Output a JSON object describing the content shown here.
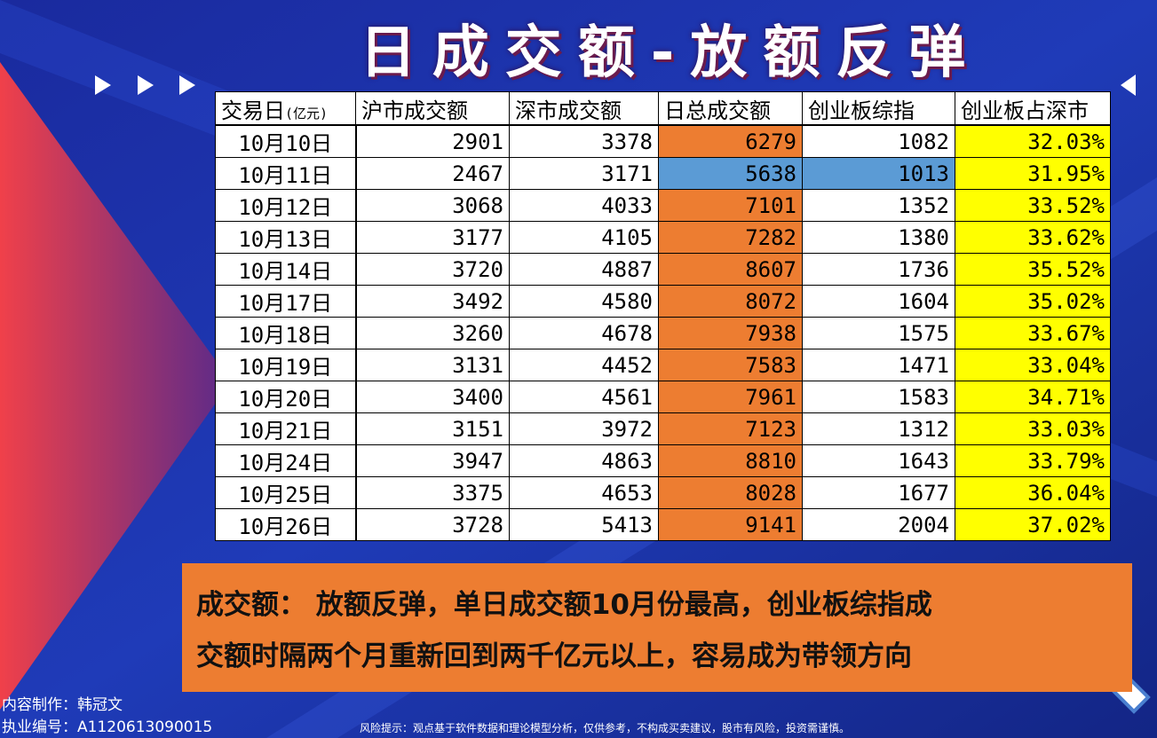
{
  "header": {
    "title": "日成交额-放额反弹"
  },
  "table": {
    "columns": [
      "交易日",
      "沪市成交额",
      "深市成交额",
      "日总成交额",
      "创业板综指",
      "创业板占深市"
    ],
    "unit": "(亿元)",
    "rows": [
      [
        "10月10日",
        "2901",
        "3378",
        "6279",
        "1082",
        "32.03%"
      ],
      [
        "10月11日",
        "2467",
        "3171",
        "5638",
        "1013",
        "31.95%"
      ],
      [
        "10月12日",
        "3068",
        "4033",
        "7101",
        "1352",
        "33.52%"
      ],
      [
        "10月13日",
        "3177",
        "4105",
        "7282",
        "1380",
        "33.62%"
      ],
      [
        "10月14日",
        "3720",
        "4887",
        "8607",
        "1736",
        "35.52%"
      ],
      [
        "10月17日",
        "3492",
        "4580",
        "8072",
        "1604",
        "35.02%"
      ],
      [
        "10月18日",
        "3260",
        "4678",
        "7938",
        "1575",
        "33.67%"
      ],
      [
        "10月19日",
        "3131",
        "4452",
        "7583",
        "1471",
        "33.04%"
      ],
      [
        "10月20日",
        "3400",
        "4561",
        "7961",
        "1583",
        "34.71%"
      ],
      [
        "10月21日",
        "3151",
        "3972",
        "7123",
        "1312",
        "33.03%"
      ],
      [
        "10月24日",
        "3947",
        "4863",
        "8810",
        "1643",
        "33.79%"
      ],
      [
        "10月25日",
        "3375",
        "4653",
        "8028",
        "1677",
        "36.04%"
      ],
      [
        "10月26日",
        "3728",
        "5413",
        "9141",
        "2004",
        "37.02%"
      ]
    ]
  },
  "summary": {
    "lines": [
      "成交额： 放额反弹，单日成交额10月份最高，创业板综指成",
      "交额时隔两个月重新回到两千亿元以上，容易成为带领方向"
    ]
  },
  "footer": {
    "author": "内容制作：韩冠文",
    "license": "执业编号：A1120613090015",
    "risk": "风险提示：观点基于软件数据和理论模型分析，仅供参考，不构成买卖建议，股市有风险，投资需谨慎。"
  }
}
